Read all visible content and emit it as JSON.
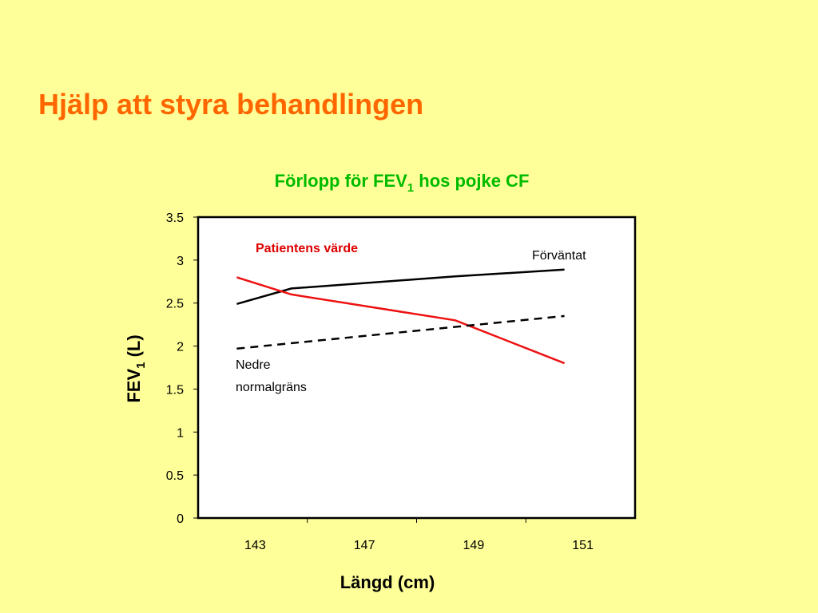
{
  "slide": {
    "title": "Hjälp att styra behandlingen"
  },
  "chart_data": {
    "type": "line",
    "title_parts": {
      "before": "Förlopp för FEV",
      "sub": "1",
      "after": " hos pojke CF"
    },
    "xlabel": "Längd (cm)",
    "ylabel_parts": {
      "before": "FEV",
      "sub": "1",
      "after": " (L)"
    },
    "categories": [
      "143",
      "147",
      "149",
      "151"
    ],
    "ylim": [
      0,
      3.5
    ],
    "yticks": [
      "0",
      "0.5",
      "1",
      "1.5",
      "2",
      "2.5",
      "3",
      "3.5"
    ],
    "grid": false,
    "series": [
      {
        "name": "Förväntat",
        "color": "#000000",
        "dash": "solid",
        "points": [
          [
            143,
            2.49
          ],
          [
            145,
            2.67
          ],
          [
            149,
            2.81
          ],
          [
            151,
            2.89
          ]
        ]
      },
      {
        "name": "Patientens värde",
        "color": "#ee1111",
        "dash": "solid",
        "points": [
          [
            143,
            2.8
          ],
          [
            145,
            2.6
          ],
          [
            149,
            2.3
          ],
          [
            151,
            1.8
          ]
        ]
      },
      {
        "name": "Nedre normalgräns",
        "color": "#000000",
        "dash": "dashed",
        "points": [
          [
            143,
            1.97
          ],
          [
            151,
            2.35
          ]
        ]
      }
    ],
    "annotations": {
      "patient": "Patientens värde",
      "expected": "Förväntat",
      "lower_line1": "Nedre",
      "lower_line2": "normalgräns"
    }
  }
}
